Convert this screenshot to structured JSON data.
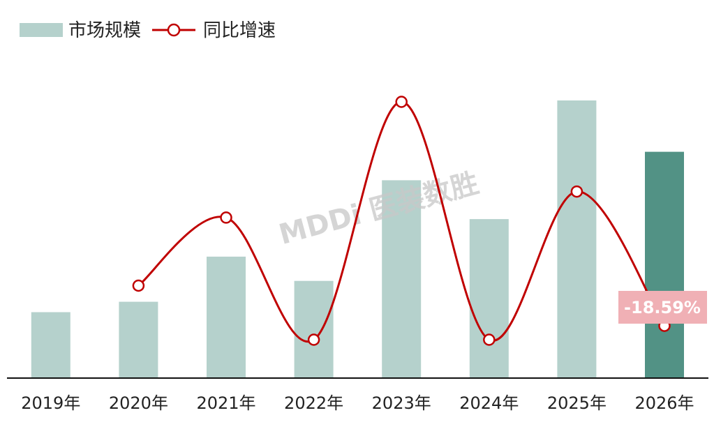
{
  "chart_data": {
    "type": "bar",
    "categories": [
      "2019年",
      "2020年",
      "2021年",
      "2022年",
      "2023年",
      "2024年",
      "2025年",
      "2026年"
    ],
    "series": [
      {
        "name": "市场规模",
        "type": "bar",
        "values": [
          95,
          110,
          175,
          140,
          285,
          229,
          400,
          326
        ],
        "color": "#b5d1cc",
        "highlight_index": 7,
        "highlight_color": "#529285"
      },
      {
        "name": "同比增速",
        "type": "line",
        "values": [
          null,
          0.0,
          31.5,
          -25.0,
          85.0,
          -25.0,
          43.5,
          -18.59
        ],
        "color": "#c00000"
      }
    ],
    "bar_ylim": [
      0,
      400
    ],
    "line_ylim": [
      -25,
      85
    ],
    "callout": {
      "label": "-18.59%",
      "color": "#f0b0b5"
    },
    "legend_position": "top-left",
    "watermark": "MDDi 医装数胜",
    "grid": false
  }
}
